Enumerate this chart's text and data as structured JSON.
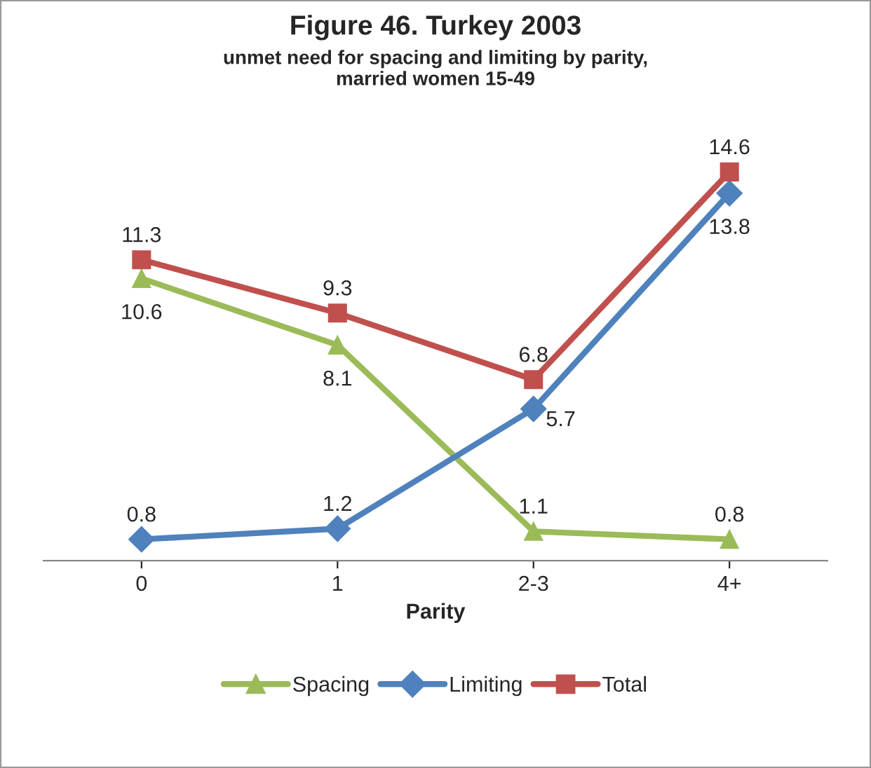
{
  "chart_data": {
    "type": "line",
    "title": "Figure 46. Turkey 2003",
    "subtitle": "unmet need for spacing and limiting by parity,\nmarried women 15-49",
    "xlabel": "Parity",
    "categories": [
      "0",
      "1",
      "2-3",
      "4+"
    ],
    "series": [
      {
        "name": "Spacing",
        "color": "#9bbb59",
        "marker": "triangle",
        "values": [
          10.6,
          8.1,
          1.1,
          0.8
        ]
      },
      {
        "name": "Limiting",
        "color": "#4f81bd",
        "marker": "diamond",
        "values": [
          0.8,
          1.2,
          5.7,
          13.8
        ]
      },
      {
        "name": "Total",
        "color": "#c0504d",
        "marker": "square",
        "values": [
          11.3,
          9.3,
          6.8,
          14.6
        ]
      }
    ],
    "data_labels": true,
    "legend": "bottom",
    "grid": false
  }
}
